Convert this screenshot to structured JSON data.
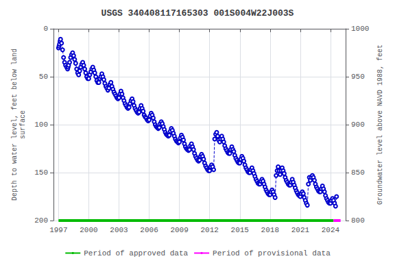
{
  "chart_data": {
    "type": "line",
    "title": "USGS 340408117165303 001S004W22J003S",
    "ylabel": "Depth to water level, feet below land\nsurface",
    "y2label": "Groundwater level above NAVD 1988, feet",
    "xlim": [
      1996.5,
      2025.5
    ],
    "xticks": [
      1997,
      2000,
      2003,
      2006,
      2009,
      2012,
      2015,
      2018,
      2021,
      2024
    ],
    "ylim": [
      200,
      0
    ],
    "yticks": [
      0,
      50,
      100,
      150,
      200
    ],
    "y2lim": [
      800,
      1000
    ],
    "y2ticks": [
      1000,
      950,
      900,
      850,
      800
    ],
    "grid": true,
    "legend": "bottom",
    "series": [
      {
        "color": "#0000cc",
        "marker": "circle",
        "line_style": "dashed",
        "x": [
          1997.0,
          1997.05,
          1997.1,
          1997.15,
          1997.2,
          1997.3,
          1997.4,
          1997.5,
          1997.6,
          1997.7,
          1997.8,
          1997.9,
          1997.95,
          1998.0,
          1998.1,
          1998.2,
          1998.3,
          1998.4,
          1998.5,
          1998.6,
          1998.7,
          1998.8,
          1998.9,
          1999.0,
          1999.1,
          1999.2,
          1999.3,
          1999.4,
          1999.5,
          1999.6,
          1999.7,
          1999.8,
          1999.9,
          2000.0,
          2000.1,
          2000.2,
          2000.3,
          2000.4,
          2000.5,
          2000.6,
          2000.7,
          2000.8,
          2000.9,
          2001.0,
          2001.1,
          2001.2,
          2001.3,
          2001.4,
          2001.5,
          2001.6,
          2001.7,
          2001.8,
          2001.9,
          2002.0,
          2002.1,
          2002.2,
          2002.3,
          2002.4,
          2002.5,
          2002.6,
          2002.7,
          2002.8,
          2002.9,
          2003.0,
          2003.1,
          2003.2,
          2003.3,
          2003.4,
          2003.5,
          2003.6,
          2003.7,
          2003.8,
          2003.9,
          2004.0,
          2004.1,
          2004.2,
          2004.3,
          2004.4,
          2004.5,
          2004.6,
          2004.7,
          2004.8,
          2004.9,
          2005.0,
          2005.1,
          2005.2,
          2005.3,
          2005.4,
          2005.5,
          2005.6,
          2005.7,
          2005.8,
          2005.9,
          2006.0,
          2006.1,
          2006.2,
          2006.3,
          2006.4,
          2006.5,
          2006.6,
          2006.7,
          2006.8,
          2006.9,
          2007.0,
          2007.1,
          2007.2,
          2007.3,
          2007.4,
          2007.5,
          2007.6,
          2007.7,
          2007.8,
          2007.9,
          2008.0,
          2008.1,
          2008.2,
          2008.3,
          2008.4,
          2008.5,
          2008.6,
          2008.7,
          2008.8,
          2008.9,
          2009.0,
          2009.1,
          2009.2,
          2009.3,
          2009.4,
          2009.5,
          2009.6,
          2009.7,
          2009.8,
          2009.9,
          2010.0,
          2010.1,
          2010.2,
          2010.3,
          2010.4,
          2010.5,
          2010.6,
          2010.7,
          2010.8,
          2010.9,
          2011.0,
          2011.1,
          2011.2,
          2011.3,
          2011.4,
          2011.5,
          2011.6,
          2011.7,
          2011.8,
          2011.9,
          2012.0,
          2012.1,
          2012.2,
          2012.3,
          2012.4,
          2012.5,
          2012.6,
          2012.7,
          2012.8,
          2012.9,
          2013.0,
          2013.1,
          2013.2,
          2013.3,
          2013.4,
          2013.5,
          2013.6,
          2013.7,
          2013.8,
          2013.9,
          2014.0,
          2014.1,
          2014.2,
          2014.3,
          2014.4,
          2014.5,
          2014.6,
          2014.7,
          2014.8,
          2014.9,
          2015.0,
          2015.1,
          2015.2,
          2015.3,
          2015.4,
          2015.5,
          2015.6,
          2015.7,
          2015.8,
          2015.9,
          2016.0,
          2016.1,
          2016.2,
          2016.3,
          2016.4,
          2016.5,
          2016.6,
          2016.7,
          2016.8,
          2016.9,
          2017.0,
          2017.1,
          2017.2,
          2017.3,
          2017.4,
          2017.5,
          2017.6,
          2017.7,
          2017.8,
          2017.9,
          2018.0,
          2018.1,
          2018.2,
          2018.3,
          2018.4,
          2018.5,
          2018.6,
          2018.7,
          2018.8,
          2018.9,
          2019.0,
          2019.1,
          2019.2,
          2019.3,
          2019.4,
          2019.5,
          2019.6,
          2019.7,
          2019.8,
          2019.9,
          2020.0,
          2020.1,
          2020.2,
          2020.3,
          2020.4,
          2020.5,
          2020.6,
          2020.7,
          2020.8,
          2020.9,
          2021.0,
          2021.1,
          2021.2,
          2021.3,
          2021.4,
          2021.5,
          2021.6,
          2021.7,
          2021.8,
          2021.9,
          2022.0,
          2022.1,
          2022.2,
          2022.3,
          2022.4,
          2022.5,
          2022.6,
          2022.7,
          2022.8,
          2022.9,
          2023.0,
          2023.1,
          2023.2,
          2023.3,
          2023.4,
          2023.5,
          2023.6,
          2023.7,
          2023.8,
          2023.9,
          2024.0,
          2024.1,
          2024.2,
          2024.3,
          2024.4,
          2024.5,
          2024.6
        ],
        "values": [
          20,
          18,
          16,
          13,
          11,
          15,
          22,
          30,
          35,
          38,
          40,
          42,
          40,
          38,
          35,
          30,
          27,
          25,
          28,
          32,
          36,
          42,
          46,
          48,
          44,
          40,
          37,
          35,
          38,
          42,
          46,
          50,
          52,
          52,
          48,
          45,
          42,
          40,
          43,
          46,
          50,
          54,
          56,
          56,
          52,
          50,
          47,
          50,
          53,
          57,
          60,
          62,
          64,
          62,
          58,
          56,
          60,
          63,
          66,
          68,
          70,
          72,
          73,
          72,
          68,
          65,
          68,
          72,
          75,
          78,
          80,
          82,
          83,
          82,
          78,
          75,
          73,
          76,
          80,
          83,
          85,
          87,
          88,
          87,
          83,
          80,
          83,
          86,
          90,
          92,
          93,
          95,
          96,
          95,
          91,
          88,
          90,
          93,
          97,
          100,
          102,
          103,
          104,
          103,
          99,
          97,
          99,
          102,
          105,
          108,
          110,
          111,
          112,
          111,
          107,
          104,
          106,
          109,
          112,
          115,
          117,
          118,
          119,
          118,
          114,
          111,
          113,
          116,
          120,
          123,
          125,
          126,
          127,
          126,
          122,
          120,
          123,
          126,
          130,
          133,
          135,
          137,
          138,
          137,
          133,
          131,
          133,
          136,
          140,
          143,
          145,
          147,
          148,
          148,
          144,
          142,
          144,
          147,
          115,
          110,
          108,
          112,
          116,
          118,
          115,
          112,
          115,
          118,
          122,
          125,
          127,
          129,
          130,
          130,
          126,
          123,
          126,
          128,
          132,
          135,
          137,
          139,
          140,
          140,
          136,
          133,
          135,
          138,
          142,
          145,
          147,
          149,
          150,
          150,
          147,
          145,
          148,
          151,
          154,
          157,
          159,
          161,
          162,
          162,
          159,
          157,
          159,
          162,
          165,
          168,
          170,
          172,
          173,
          173,
          170,
          168,
          170,
          173,
          176,
          153,
          148,
          144,
          148,
          152,
          148,
          145,
          148,
          151,
          155,
          158,
          160,
          162,
          163,
          163,
          160,
          157,
          160,
          163,
          166,
          169,
          171,
          173,
          174,
          175,
          172,
          170,
          172,
          176,
          179,
          182,
          184,
          162,
          155,
          158,
          155,
          153,
          155,
          158,
          162,
          165,
          167,
          169,
          170,
          170,
          167,
          164,
          167,
          170,
          174,
          177,
          179,
          181,
          182,
          182,
          179,
          177,
          179,
          182,
          185,
          175
        ]
      },
      {
        "name": "Period of approved data",
        "color": "#00bb00",
        "line_style": "solid",
        "x": [
          1997.0,
          2024.3
        ],
        "values": [
          200,
          200
        ]
      },
      {
        "name": "Period of provisional data",
        "color": "#ff00ff",
        "line_style": "solid",
        "x": [
          2024.3,
          2025.0
        ],
        "values": [
          200,
          200
        ]
      }
    ]
  }
}
